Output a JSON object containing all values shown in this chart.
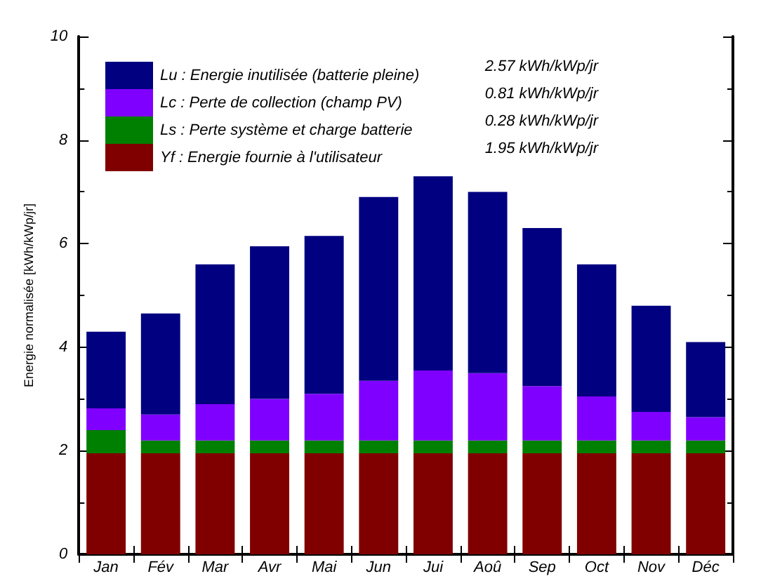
{
  "chart_data": {
    "type": "bar",
    "stacked": true,
    "ylabel": "Energie normalisée [kWh/kWp/jr]",
    "categories": [
      "Jan",
      "Fév",
      "Mar",
      "Avr",
      "Mai",
      "Jun",
      "Jui",
      "Aoû",
      "Sep",
      "Oct",
      "Nov",
      "Déc"
    ],
    "ylim": [
      0,
      10
    ],
    "yticks": [
      0,
      2,
      4,
      6,
      8,
      10
    ],
    "grid": false,
    "legend": "top left",
    "series": [
      {
        "name": "Yf : Energie fournie à l'utilisateur",
        "color": "#800000",
        "values": [
          1.95,
          1.95,
          1.95,
          1.95,
          1.95,
          1.95,
          1.95,
          1.95,
          1.95,
          1.95,
          1.95,
          1.95
        ]
      },
      {
        "name": "Ls : Perte système et charge batterie",
        "color": "#008000",
        "values": [
          0.45,
          0.25,
          0.25,
          0.25,
          0.25,
          0.25,
          0.25,
          0.25,
          0.25,
          0.25,
          0.25,
          0.25
        ]
      },
      {
        "name": "Lc : Perte de collection (champ PV)",
        "color": "#8000ff",
        "values": [
          0.42,
          0.5,
          0.7,
          0.8,
          0.9,
          1.15,
          1.35,
          1.3,
          1.05,
          0.85,
          0.55,
          0.45
        ]
      },
      {
        "name": "Lu : Energie inutilisée (batterie pleine)",
        "color": "#000080",
        "values": [
          1.48,
          1.95,
          2.7,
          2.95,
          3.05,
          3.55,
          3.75,
          3.5,
          3.05,
          2.55,
          2.05,
          1.45
        ]
      }
    ],
    "annotations": [
      "2.57 kWh/kWp/jr",
      "0.81 kWh/kWp/jr",
      "0.28 kWh/kWp/jr",
      "1.95 kWh/kWp/jr"
    ]
  }
}
